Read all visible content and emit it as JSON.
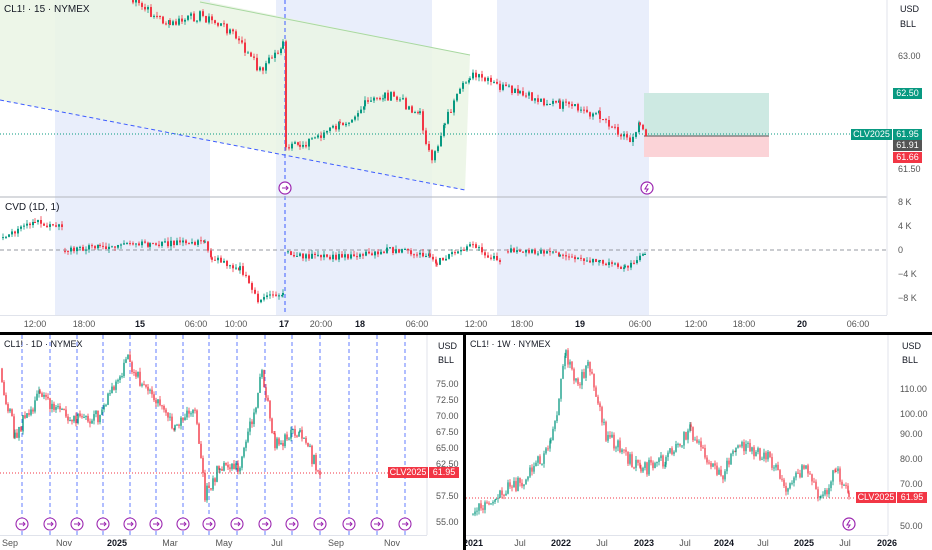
{
  "main": {
    "symbol_title": "CL1! · 15 · NYMEX",
    "currency": "USD",
    "unit": "BLL",
    "price_ticks": [
      "63.00",
      "62.50",
      "61.50"
    ],
    "badges": {
      "target": "62.50",
      "contract": "CLV2025",
      "last": "61.95",
      "current": "61.91",
      "stop": "61.66"
    },
    "time_ticks": [
      "12:00",
      "18:00",
      "15",
      "06:00",
      "10:00",
      "17",
      "20:00",
      "18",
      "06:00",
      "12:00",
      "18:00",
      "19",
      "06:00",
      "12:00",
      "18:00",
      "20",
      "06:00"
    ],
    "cvd": {
      "title": "CVD (1D, 1)",
      "ticks": [
        "8 K",
        "4 K",
        "0",
        "−4 K",
        "−8 K"
      ]
    },
    "markers": [
      "session-marker",
      "flash-marker"
    ]
  },
  "daily": {
    "symbol_title": "CL1! · 1D · NYMEX",
    "currency": "USD",
    "unit": "BLL",
    "price_ticks": [
      "75.00",
      "72.50",
      "70.00",
      "67.50",
      "65.00",
      "62.50",
      "60.00",
      "57.50",
      "55.00"
    ],
    "badge_contract": "CLV2025",
    "badge_last": "61.95",
    "time_ticks": [
      "Sep",
      "Nov",
      "2025",
      "Mar",
      "May",
      "Jul",
      "Sep",
      "Nov"
    ]
  },
  "weekly": {
    "symbol_title": "CL1! · 1W · NYMEX",
    "currency": "USD",
    "unit": "BLL",
    "price_ticks": [
      "110.00",
      "100.00",
      "90.00",
      "80.00",
      "70.00",
      "60.00",
      "50.00"
    ],
    "badge_contract": "CLV2025",
    "badge_last": "61.95",
    "time_ticks": [
      "2021",
      "Jul",
      "2022",
      "Jul",
      "2023",
      "Jul",
      "2024",
      "Jul",
      "2025",
      "Jul",
      "2026"
    ]
  },
  "colors": {
    "up": "#089981",
    "down": "#f23645",
    "session_band": "#e8eefc",
    "pattern_fill": "#eef7e8",
    "target_zone": "#cde9e2",
    "stop_zone": "#fbd3d7",
    "marker": "#9c27b0",
    "dash_blue": "#3d5cff"
  }
}
